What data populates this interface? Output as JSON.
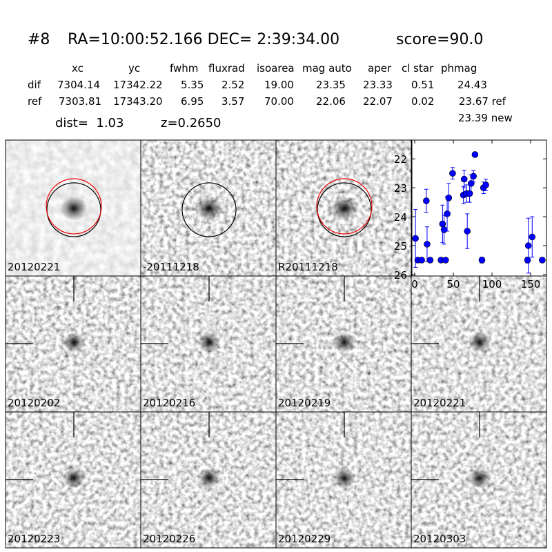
{
  "header": {
    "id": "#8",
    "coords": "RA=10:00:52.166 DEC= 2:39:34.00",
    "score": "score=90.0"
  },
  "table": {
    "columns": [
      "xc",
      "yc",
      "fwhm",
      "fluxrad",
      "isoarea",
      "mag auto",
      "aper",
      "cl star",
      "phmag"
    ],
    "rows": [
      [
        "dif",
        "7304.14",
        "17342.22",
        "5.35",
        "2.52",
        "19.00",
        "23.35",
        "23.33",
        "0.51",
        "24.43"
      ],
      [
        "ref",
        "7303.81",
        "17343.20",
        "6.95",
        "3.57",
        "70.00",
        "22.06",
        "22.07",
        "0.02",
        "23.67 ref"
      ]
    ],
    "extra": "23.39 new"
  },
  "info": {
    "dist": "dist=  1.03",
    "z": "z=0.2650"
  },
  "panels": [
    {
      "label": "20120221"
    },
    {
      "label": "-20111218"
    },
    {
      "label": "R20111218"
    },
    {
      "label": "20120202"
    },
    {
      "label": "20120216"
    },
    {
      "label": "20120219"
    },
    {
      "label": "20120221",
      "color": "#ff0000"
    },
    {
      "label": "20120223"
    },
    {
      "label": "20120226"
    },
    {
      "label": "20120229"
    },
    {
      "label": "20120303"
    }
  ],
  "chart_data": {
    "type": "errorbar",
    "x": [
      1,
      4,
      9,
      15,
      16,
      20,
      34,
      36,
      38,
      40,
      42,
      44,
      49,
      63,
      64,
      67,
      68,
      71,
      73,
      76,
      78,
      87,
      89,
      92,
      146,
      147,
      152,
      165
    ],
    "values": [
      24.75,
      25.5,
      25.5,
      23.45,
      24.95,
      25.5,
      25.5,
      24.25,
      24.45,
      25.5,
      23.9,
      23.35,
      22.5,
      23.25,
      22.7,
      23.2,
      24.5,
      23.2,
      22.85,
      22.6,
      21.85,
      25.5,
      23.0,
      22.9,
      25.5,
      25.0,
      24.7,
      25.5
    ],
    "errors": [
      1.0,
      0,
      0,
      0.4,
      0.6,
      0,
      0,
      0.65,
      0.5,
      0,
      0.6,
      0.5,
      0.2,
      0.3,
      0.3,
      0.3,
      0.6,
      0.3,
      0.3,
      0.2,
      0.05,
      0.1,
      0.2,
      0.2,
      0.1,
      0.95,
      0.7,
      0
    ],
    "color": "#0000ff",
    "xlim": [
      -3.6,
      170.5
    ],
    "xticks": [
      0,
      50,
      100,
      150
    ],
    "ylim": [
      26.05,
      21.35
    ],
    "yticks": [
      22,
      23,
      24,
      25,
      26
    ]
  }
}
